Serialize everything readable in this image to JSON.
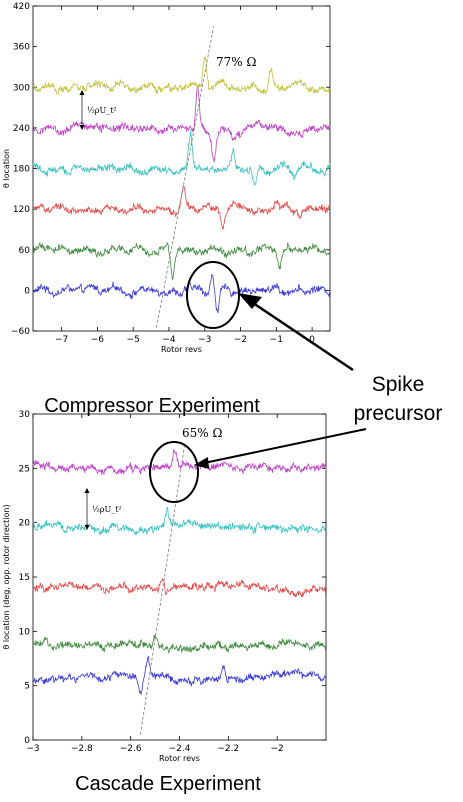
{
  "charts_caption": {
    "top": "Compressor Experiment",
    "bottom": "Cascade Experiment"
  },
  "callout": {
    "line1": "Spike",
    "line2": "precursor"
  },
  "chart_data": [
    {
      "type": "line",
      "xlabel": "Rotor revs",
      "ylabel": "θ location",
      "xlim": [
        -7.8,
        0.5
      ],
      "ylim": [
        -60,
        420
      ],
      "xticks": [
        -7,
        -6,
        -5,
        -4,
        -3,
        -2,
        -1,
        0
      ],
      "yticks": [
        -60,
        0,
        60,
        120,
        180,
        240,
        300,
        360,
        420
      ],
      "grid": false,
      "annotation": "77% Ω",
      "scale_label": "½ρU_t²",
      "series": [
        {
          "color": "#3a3ad8",
          "baseline": 0,
          "spikes": [
            [
              -2.8,
              20
            ],
            [
              -2.65,
              -30
            ],
            [
              -1.0,
              10
            ]
          ]
        },
        {
          "color": "#3f8a3f",
          "baseline": 60,
          "spikes": [
            [
              -3.9,
              -40
            ],
            [
              -0.9,
              -30
            ]
          ]
        },
        {
          "color": "#e64a4a",
          "baseline": 120,
          "spikes": [
            [
              -3.6,
              35
            ],
            [
              -2.5,
              -25
            ],
            [
              -1.0,
              15
            ]
          ]
        },
        {
          "color": "#38c2c2",
          "baseline": 180,
          "spikes": [
            [
              -3.4,
              50
            ],
            [
              -2.2,
              25
            ],
            [
              -1.6,
              -25
            ],
            [
              -0.5,
              -10
            ]
          ]
        },
        {
          "color": "#c040c8",
          "baseline": 240,
          "spikes": [
            [
              -3.2,
              60
            ],
            [
              -2.75,
              -40
            ],
            [
              -2.2,
              -20
            ],
            [
              -0.3,
              -10
            ]
          ]
        },
        {
          "color": "#c2c23a",
          "baseline": 300,
          "spikes": [
            [
              -3.0,
              50
            ],
            [
              -1.15,
              25
            ]
          ]
        }
      ]
    },
    {
      "type": "line",
      "xlabel": "Rotor revs",
      "ylabel": "θ location (deg, opp. rotor direction)",
      "xlim": [
        -3,
        -1.8
      ],
      "ylim": [
        0,
        30
      ],
      "xticks": [
        -3,
        -2.8,
        -2.6,
        -2.4,
        -2.2,
        -2
      ],
      "yticks": [
        0,
        5,
        10,
        15,
        20,
        25,
        30
      ],
      "grid": false,
      "annotation": "65% Ω",
      "scale_label": "½ρU_t²",
      "series": [
        {
          "color": "#3a3ad8",
          "baseline": 5.8,
          "spikes": [
            [
              -2.56,
              -1.5
            ],
            [
              -2.53,
              1.8
            ],
            [
              -2.22,
              1.2
            ]
          ]
        },
        {
          "color": "#3f8a3f",
          "baseline": 8.7,
          "spikes": [
            [
              -2.5,
              1.0
            ],
            [
              -2.2,
              -0.6
            ]
          ]
        },
        {
          "color": "#e64a4a",
          "baseline": 14.0,
          "spikes": [
            [
              -2.47,
              1.3
            ]
          ]
        },
        {
          "color": "#38c2c2",
          "baseline": 19.6,
          "spikes": [
            [
              -2.45,
              1.6
            ],
            [
              -2.4,
              -0.5
            ]
          ]
        },
        {
          "color": "#c040c8",
          "baseline": 25.1,
          "spikes": [
            [
              -2.42,
              1.3
            ]
          ]
        }
      ]
    }
  ]
}
